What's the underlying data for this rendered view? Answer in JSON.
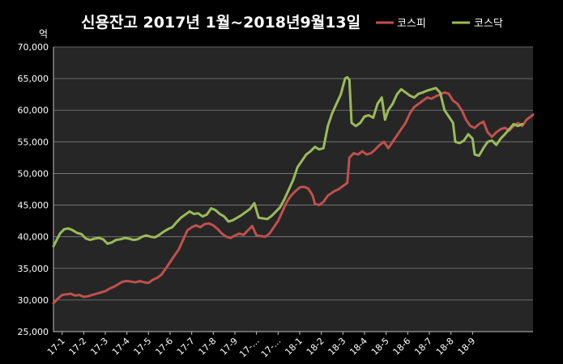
{
  "chart_data": {
    "type": "line",
    "title": "신용잔고 2017년 1월~2018년9월13일",
    "ylabel": "억",
    "ylim": [
      25000,
      70000
    ],
    "y_ticks": [
      "70,000",
      "65,000",
      "60,000",
      "55,000",
      "50,000",
      "45,000",
      "40,000",
      "35,000",
      "30,000",
      "25,000"
    ],
    "y_tick_values": [
      70000,
      65000,
      60000,
      55000,
      50000,
      45000,
      40000,
      35000,
      30000,
      25000
    ],
    "categories": [
      "17-1",
      "17-2",
      "17-3",
      "17-4",
      "17-5",
      "17-6",
      "17-7",
      "17-8",
      "17-9",
      "17-…",
      "17-…",
      "18-1",
      "18-2",
      "18-3",
      "18-4",
      "18-5",
      "18-6",
      "18-7",
      "18-8",
      "18-9"
    ],
    "grid": true,
    "legend_position": "top-right",
    "background": "#262626",
    "series": [
      {
        "name": "코스피",
        "color": "#c0504d",
        "values": [
          [
            0,
            29500
          ],
          [
            0.2,
            30200
          ],
          [
            0.4,
            30800
          ],
          [
            0.6,
            30900
          ],
          [
            0.8,
            31000
          ],
          [
            1.0,
            30700
          ],
          [
            1.2,
            30800
          ],
          [
            1.4,
            30500
          ],
          [
            1.6,
            30600
          ],
          [
            1.8,
            30800
          ],
          [
            2.0,
            31000
          ],
          [
            2.2,
            31200
          ],
          [
            2.4,
            31400
          ],
          [
            2.6,
            31800
          ],
          [
            2.8,
            32100
          ],
          [
            3.0,
            32500
          ],
          [
            3.2,
            32900
          ],
          [
            3.4,
            33000
          ],
          [
            3.6,
            32900
          ],
          [
            3.8,
            32800
          ],
          [
            4.0,
            33000
          ],
          [
            4.2,
            32800
          ],
          [
            4.4,
            32700
          ],
          [
            4.6,
            33200
          ],
          [
            4.8,
            33500
          ],
          [
            5.0,
            34000
          ],
          [
            5.2,
            35000
          ],
          [
            5.4,
            36000
          ],
          [
            5.6,
            37000
          ],
          [
            5.8,
            38000
          ],
          [
            6.0,
            39500
          ],
          [
            6.2,
            41000
          ],
          [
            6.4,
            41500
          ],
          [
            6.6,
            41800
          ],
          [
            6.8,
            41500
          ],
          [
            7.0,
            42000
          ],
          [
            7.2,
            42100
          ],
          [
            7.4,
            41800
          ],
          [
            7.6,
            41200
          ],
          [
            7.8,
            40500
          ],
          [
            8.0,
            40000
          ],
          [
            8.2,
            39800
          ],
          [
            8.4,
            40200
          ],
          [
            8.6,
            40500
          ],
          [
            8.8,
            40300
          ],
          [
            9.0,
            41000
          ],
          [
            9.2,
            41700
          ],
          [
            9.4,
            40200
          ],
          [
            9.6,
            40100
          ],
          [
            9.8,
            40000
          ],
          [
            10.0,
            40500
          ],
          [
            10.2,
            41500
          ],
          [
            10.4,
            42500
          ],
          [
            10.6,
            44000
          ],
          [
            10.8,
            45500
          ],
          [
            11.0,
            46500
          ],
          [
            11.2,
            47200
          ],
          [
            11.4,
            47800
          ],
          [
            11.6,
            47900
          ],
          [
            11.8,
            47600
          ],
          [
            12.0,
            46500
          ],
          [
            12.1,
            45200
          ],
          [
            12.3,
            45000
          ],
          [
            12.5,
            45500
          ],
          [
            12.7,
            46500
          ],
          [
            13.0,
            47200
          ],
          [
            13.2,
            47500
          ],
          [
            13.4,
            48000
          ],
          [
            13.6,
            48500
          ],
          [
            13.7,
            52500
          ],
          [
            13.9,
            53200
          ],
          [
            14.1,
            53000
          ],
          [
            14.3,
            53500
          ],
          [
            14.5,
            53000
          ],
          [
            14.7,
            53200
          ],
          [
            14.9,
            53800
          ],
          [
            15.1,
            54500
          ],
          [
            15.3,
            55000
          ],
          [
            15.5,
            54000
          ],
          [
            15.7,
            55000
          ],
          [
            15.9,
            56000
          ],
          [
            16.1,
            57000
          ],
          [
            16.3,
            58000
          ],
          [
            16.5,
            59500
          ],
          [
            16.7,
            60500
          ],
          [
            16.9,
            61000
          ],
          [
            17.1,
            61500
          ],
          [
            17.3,
            62000
          ],
          [
            17.5,
            61800
          ],
          [
            17.7,
            62200
          ],
          [
            17.9,
            62500
          ],
          [
            18.1,
            62800
          ],
          [
            18.3,
            62600
          ],
          [
            18.5,
            61500
          ],
          [
            18.7,
            61000
          ],
          [
            18.9,
            60000
          ],
          [
            19.1,
            58500
          ],
          [
            19.3,
            57500
          ],
          [
            19.5,
            57200
          ],
          [
            19.7,
            57800
          ],
          [
            19.9,
            58200
          ],
          [
            20.1,
            56500
          ],
          [
            20.3,
            55800
          ],
          [
            20.5,
            56500
          ],
          [
            20.7,
            57000
          ],
          [
            20.9,
            57200
          ],
          [
            21.1,
            56800
          ],
          [
            21.3,
            57500
          ],
          [
            21.5,
            58000
          ],
          [
            21.7,
            57500
          ],
          [
            21.9,
            58500
          ],
          [
            22.1,
            59000
          ],
          [
            22.2,
            59300
          ]
        ]
      },
      {
        "name": "코스닥",
        "color": "#9bbb59",
        "values": [
          [
            0,
            38500
          ],
          [
            0.15,
            39500
          ],
          [
            0.3,
            40500
          ],
          [
            0.5,
            41200
          ],
          [
            0.7,
            41300
          ],
          [
            0.9,
            41000
          ],
          [
            1.1,
            40600
          ],
          [
            1.3,
            40400
          ],
          [
            1.5,
            39700
          ],
          [
            1.7,
            39500
          ],
          [
            1.9,
            39700
          ],
          [
            2.1,
            39800
          ],
          [
            2.3,
            39600
          ],
          [
            2.5,
            38900
          ],
          [
            2.7,
            39100
          ],
          [
            2.9,
            39500
          ],
          [
            3.1,
            39600
          ],
          [
            3.3,
            39800
          ],
          [
            3.5,
            39700
          ],
          [
            3.7,
            39500
          ],
          [
            3.9,
            39600
          ],
          [
            4.1,
            40000
          ],
          [
            4.3,
            40200
          ],
          [
            4.5,
            40000
          ],
          [
            4.7,
            39900
          ],
          [
            4.9,
            40300
          ],
          [
            5.1,
            40800
          ],
          [
            5.3,
            41200
          ],
          [
            5.5,
            41500
          ],
          [
            5.7,
            42300
          ],
          [
            5.9,
            43000
          ],
          [
            6.1,
            43500
          ],
          [
            6.3,
            44000
          ],
          [
            6.5,
            43600
          ],
          [
            6.7,
            43700
          ],
          [
            6.9,
            43200
          ],
          [
            7.1,
            43500
          ],
          [
            7.3,
            44500
          ],
          [
            7.5,
            44200
          ],
          [
            7.7,
            43600
          ],
          [
            7.9,
            43200
          ],
          [
            8.1,
            42400
          ],
          [
            8.3,
            42600
          ],
          [
            8.5,
            43000
          ],
          [
            8.7,
            43400
          ],
          [
            8.9,
            43900
          ],
          [
            9.1,
            44400
          ],
          [
            9.3,
            45300
          ],
          [
            9.5,
            43000
          ],
          [
            9.7,
            42900
          ],
          [
            9.9,
            42800
          ],
          [
            10.1,
            43300
          ],
          [
            10.3,
            44000
          ],
          [
            10.5,
            44700
          ],
          [
            10.7,
            46000
          ],
          [
            10.9,
            47500
          ],
          [
            11.1,
            49000
          ],
          [
            11.3,
            51000
          ],
          [
            11.5,
            52000
          ],
          [
            11.7,
            53000
          ],
          [
            11.9,
            53500
          ],
          [
            12.1,
            54200
          ],
          [
            12.3,
            53800
          ],
          [
            12.5,
            54000
          ],
          [
            12.7,
            57500
          ],
          [
            12.9,
            59500
          ],
          [
            13.1,
            61000
          ],
          [
            13.3,
            62500
          ],
          [
            13.5,
            65000
          ],
          [
            13.6,
            65200
          ],
          [
            13.7,
            64800
          ],
          [
            13.8,
            58000
          ],
          [
            14.0,
            57500
          ],
          [
            14.2,
            58000
          ],
          [
            14.4,
            59000
          ],
          [
            14.6,
            59200
          ],
          [
            14.8,
            58800
          ],
          [
            15.0,
            61000
          ],
          [
            15.2,
            62000
          ],
          [
            15.35,
            58500
          ],
          [
            15.5,
            60000
          ],
          [
            15.7,
            61000
          ],
          [
            15.9,
            62500
          ],
          [
            16.1,
            63300
          ],
          [
            16.3,
            62800
          ],
          [
            16.5,
            62300
          ],
          [
            16.7,
            62000
          ],
          [
            16.9,
            62600
          ],
          [
            17.1,
            62800
          ],
          [
            17.3,
            63100
          ],
          [
            17.5,
            63300
          ],
          [
            17.7,
            63500
          ],
          [
            17.9,
            62800
          ],
          [
            18.1,
            60000
          ],
          [
            18.3,
            59000
          ],
          [
            18.5,
            58000
          ],
          [
            18.6,
            55000
          ],
          [
            18.8,
            54800
          ],
          [
            19.0,
            55200
          ],
          [
            19.2,
            56200
          ],
          [
            19.4,
            55500
          ],
          [
            19.5,
            53000
          ],
          [
            19.7,
            52800
          ],
          [
            19.9,
            54000
          ],
          [
            20.1,
            55000
          ],
          [
            20.3,
            55200
          ],
          [
            20.5,
            54500
          ],
          [
            20.7,
            55500
          ],
          [
            20.9,
            56200
          ],
          [
            21.1,
            57000
          ],
          [
            21.3,
            57800
          ],
          [
            21.5,
            57500
          ],
          [
            21.7,
            57800
          ]
        ]
      }
    ]
  }
}
